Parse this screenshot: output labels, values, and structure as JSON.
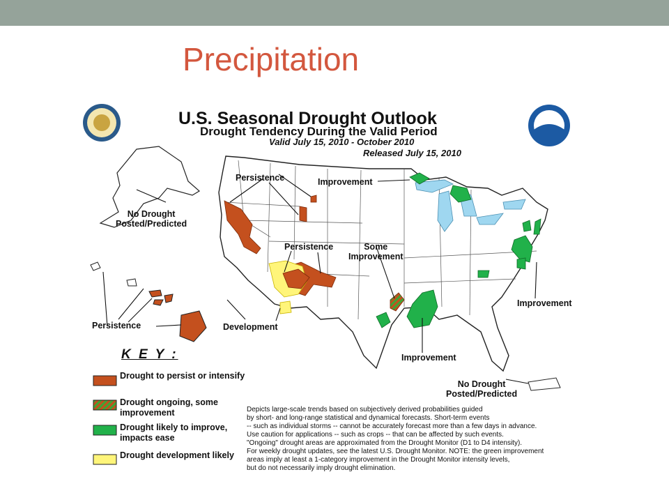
{
  "slide": {
    "title": "Precipitation"
  },
  "map": {
    "title": "U.S. Seasonal Drought Outlook",
    "subtitle": "Drought Tendency During the Valid Period",
    "valid": "Valid July 15, 2010 - October 2010",
    "released": "Released July 15, 2010",
    "labels": {
      "persistence_nw": "Persistence",
      "improvement_north": "Improvement",
      "no_drought_alaska": "No Drought\nPosted/Predicted",
      "persistence_sw": "Persistence",
      "some_improvement": "Some\nImprovement",
      "persistence_hawaii": "Persistence",
      "development": "Development",
      "improvement_east": "Improvement",
      "improvement_south": "Improvement",
      "no_drought_pr": "No Drought\nPosted/Predicted"
    }
  },
  "key": {
    "title": "K E Y :",
    "items": [
      {
        "label": "Drought to persist or intensify",
        "color": "#c4501e"
      },
      {
        "label": "Drought ongoing, some improvement",
        "color": "#c4501e",
        "hatch": "#3fa535"
      },
      {
        "label": "Drought likely to improve, impacts ease",
        "color": "#21b14a"
      },
      {
        "label": "Drought development likely",
        "color": "#fff57a"
      }
    ]
  },
  "description": "Depicts large-scale trends based on subjectively derived probabilities guided\nby short- and long-range statistical and dynamical forecasts. Short-term events\n-- such as individual storms -- cannot be accurately forecast more than a few days in advance.\nUse caution for applications -- such as crops -- that can be affected by such events.\n\"Ongoing\" drought areas are approximated from the Drought Monitor (D1 to D4 intensity).\nFor weekly drought updates, see the latest U.S. Drought Monitor. NOTE: the green improvement\nareas imply at least a 1-category improvement in the Drought Monitor intensity levels,\nbut do not necessarily imply drought elimination.",
  "colors": {
    "persist": "#c4501e",
    "improve": "#21b14a",
    "develop": "#fff57a",
    "lakes": "#9fd7f0",
    "title": "#d3573e",
    "bar": "#95a39a"
  },
  "logos": {
    "left": "commerce-seal",
    "right": "NOAA"
  }
}
